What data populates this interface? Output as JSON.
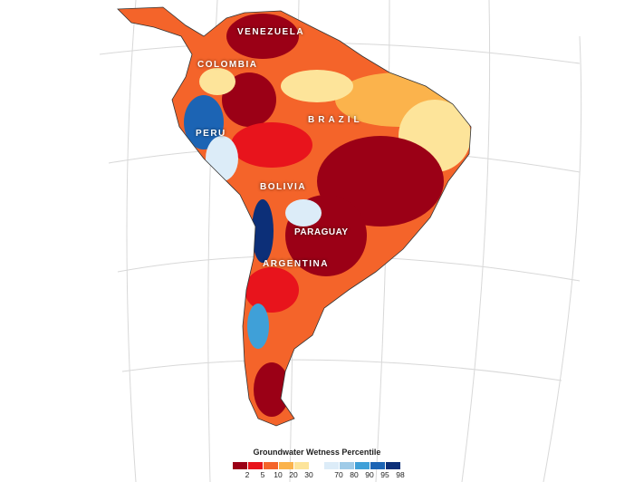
{
  "labels": {
    "venezuela": "VENEZUELA",
    "colombia": "COLOMBIA",
    "brazil": "BRAZIL",
    "peru": "PERU",
    "bolivia": "BOLIVIA",
    "paraguay": "PARAGUAY",
    "argentina": "ARGENTINA"
  },
  "legend": {
    "title": "Groundwater Wetness Percentile",
    "dry": [
      {
        "label": "2",
        "color": "#9b0016"
      },
      {
        "label": "5",
        "color": "#e8141c"
      },
      {
        "label": "10",
        "color": "#f4642a"
      },
      {
        "label": "20",
        "color": "#fbb34c"
      },
      {
        "label": "30",
        "color": "#fde49a"
      }
    ],
    "wet": [
      {
        "label": "70",
        "color": "#dcecf8"
      },
      {
        "label": "80",
        "color": "#9fcbe8"
      },
      {
        "label": "90",
        "color": "#3fa0d8"
      },
      {
        "label": "95",
        "color": "#1c64b4"
      },
      {
        "label": "98",
        "color": "#0c2f78"
      }
    ]
  }
}
